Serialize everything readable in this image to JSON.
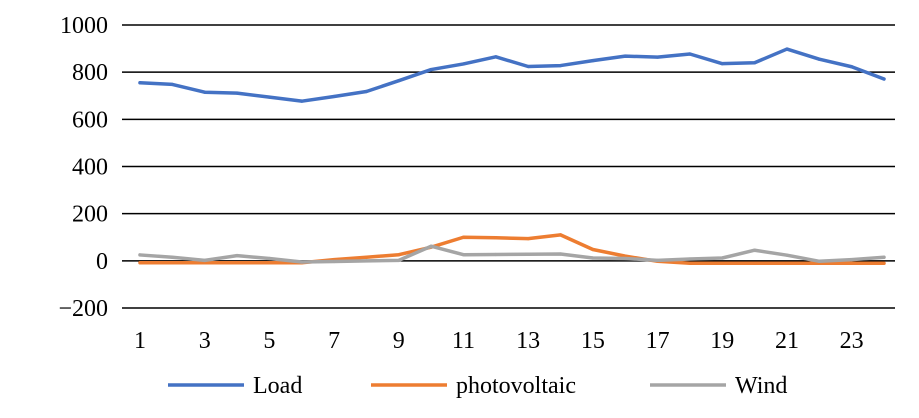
{
  "chart_data": {
    "type": "line",
    "title": "",
    "xlabel": "",
    "ylabel": "",
    "x": [
      1,
      2,
      3,
      4,
      5,
      6,
      7,
      8,
      9,
      10,
      11,
      12,
      13,
      14,
      15,
      16,
      17,
      18,
      19,
      20,
      21,
      22,
      23,
      24
    ],
    "x_tick_labels": [
      "1",
      "3",
      "5",
      "7",
      "9",
      "11",
      "13",
      "15",
      "17",
      "19",
      "21",
      "23"
    ],
    "y_tick_labels": [
      "1000",
      "800",
      "600",
      "400",
      "200",
      "0",
      "−200"
    ],
    "ylim": [
      -200,
      1000
    ],
    "grid": "horizontal",
    "legend_position": "bottom",
    "series": [
      {
        "name": "Load",
        "color": "#4472c4",
        "values": [
          755,
          748,
          715,
          711,
          694,
          677,
          697,
          718,
          764,
          811,
          835,
          865,
          824,
          828,
          849,
          868,
          864,
          877,
          836,
          840,
          898,
          855,
          823,
          771
        ]
      },
      {
        "name": "photovoltaic",
        "color": "#ed7d31",
        "values": [
          -8,
          -8,
          -8,
          -8,
          -8,
          -8,
          5,
          15,
          26,
          58,
          100,
          98,
          94,
          110,
          48,
          20,
          -2,
          -10,
          -10,
          -10,
          -10,
          -10,
          -10,
          -10
        ]
      },
      {
        "name": "Wind",
        "color": "#a5a5a5",
        "values": [
          25,
          15,
          2,
          22,
          10,
          -5,
          -3,
          0,
          2,
          62,
          26,
          27,
          28,
          29,
          12,
          10,
          2,
          8,
          12,
          45,
          24,
          -2,
          5,
          15
        ]
      }
    ]
  }
}
